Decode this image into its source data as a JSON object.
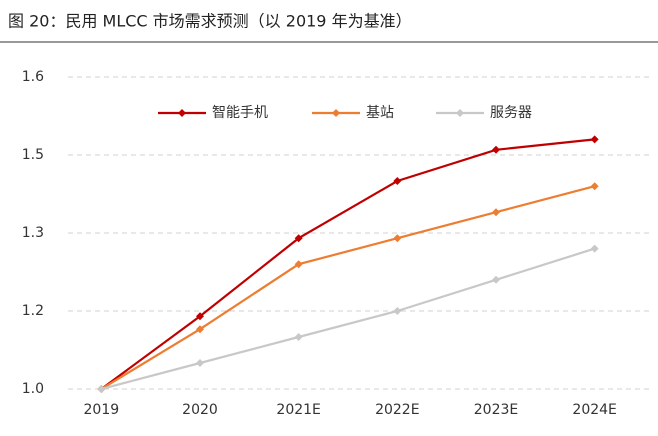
{
  "chart_data": {
    "type": "line",
    "title": "图 20：民用 MLCC 市场需求预测（以 2019 年为基准）",
    "categories": [
      "2019",
      "2020",
      "2021E",
      "2022E",
      "2023E",
      "2024E"
    ],
    "series": [
      {
        "name": "智能手机",
        "color": "#c00000",
        "values": [
          1.0,
          1.14,
          1.29,
          1.4,
          1.46,
          1.48
        ]
      },
      {
        "name": "基站",
        "color": "#ed7d31",
        "values": [
          1.0,
          1.115,
          1.24,
          1.29,
          1.34,
          1.39
        ]
      },
      {
        "name": "服务器",
        "color": "#c8c8c8",
        "values": [
          1.0,
          1.05,
          1.1,
          1.15,
          1.21,
          1.27
        ]
      }
    ],
    "ylim": [
      1.0,
      1.6
    ],
    "yticks": [
      {
        "value": 1.0,
        "label": "1.0"
      },
      {
        "value": 1.15,
        "label": "1.2"
      },
      1.3,
      {
        "value": 1.45,
        "label": "1.5"
      },
      1.6
    ],
    "grid": true,
    "legend": "top"
  }
}
